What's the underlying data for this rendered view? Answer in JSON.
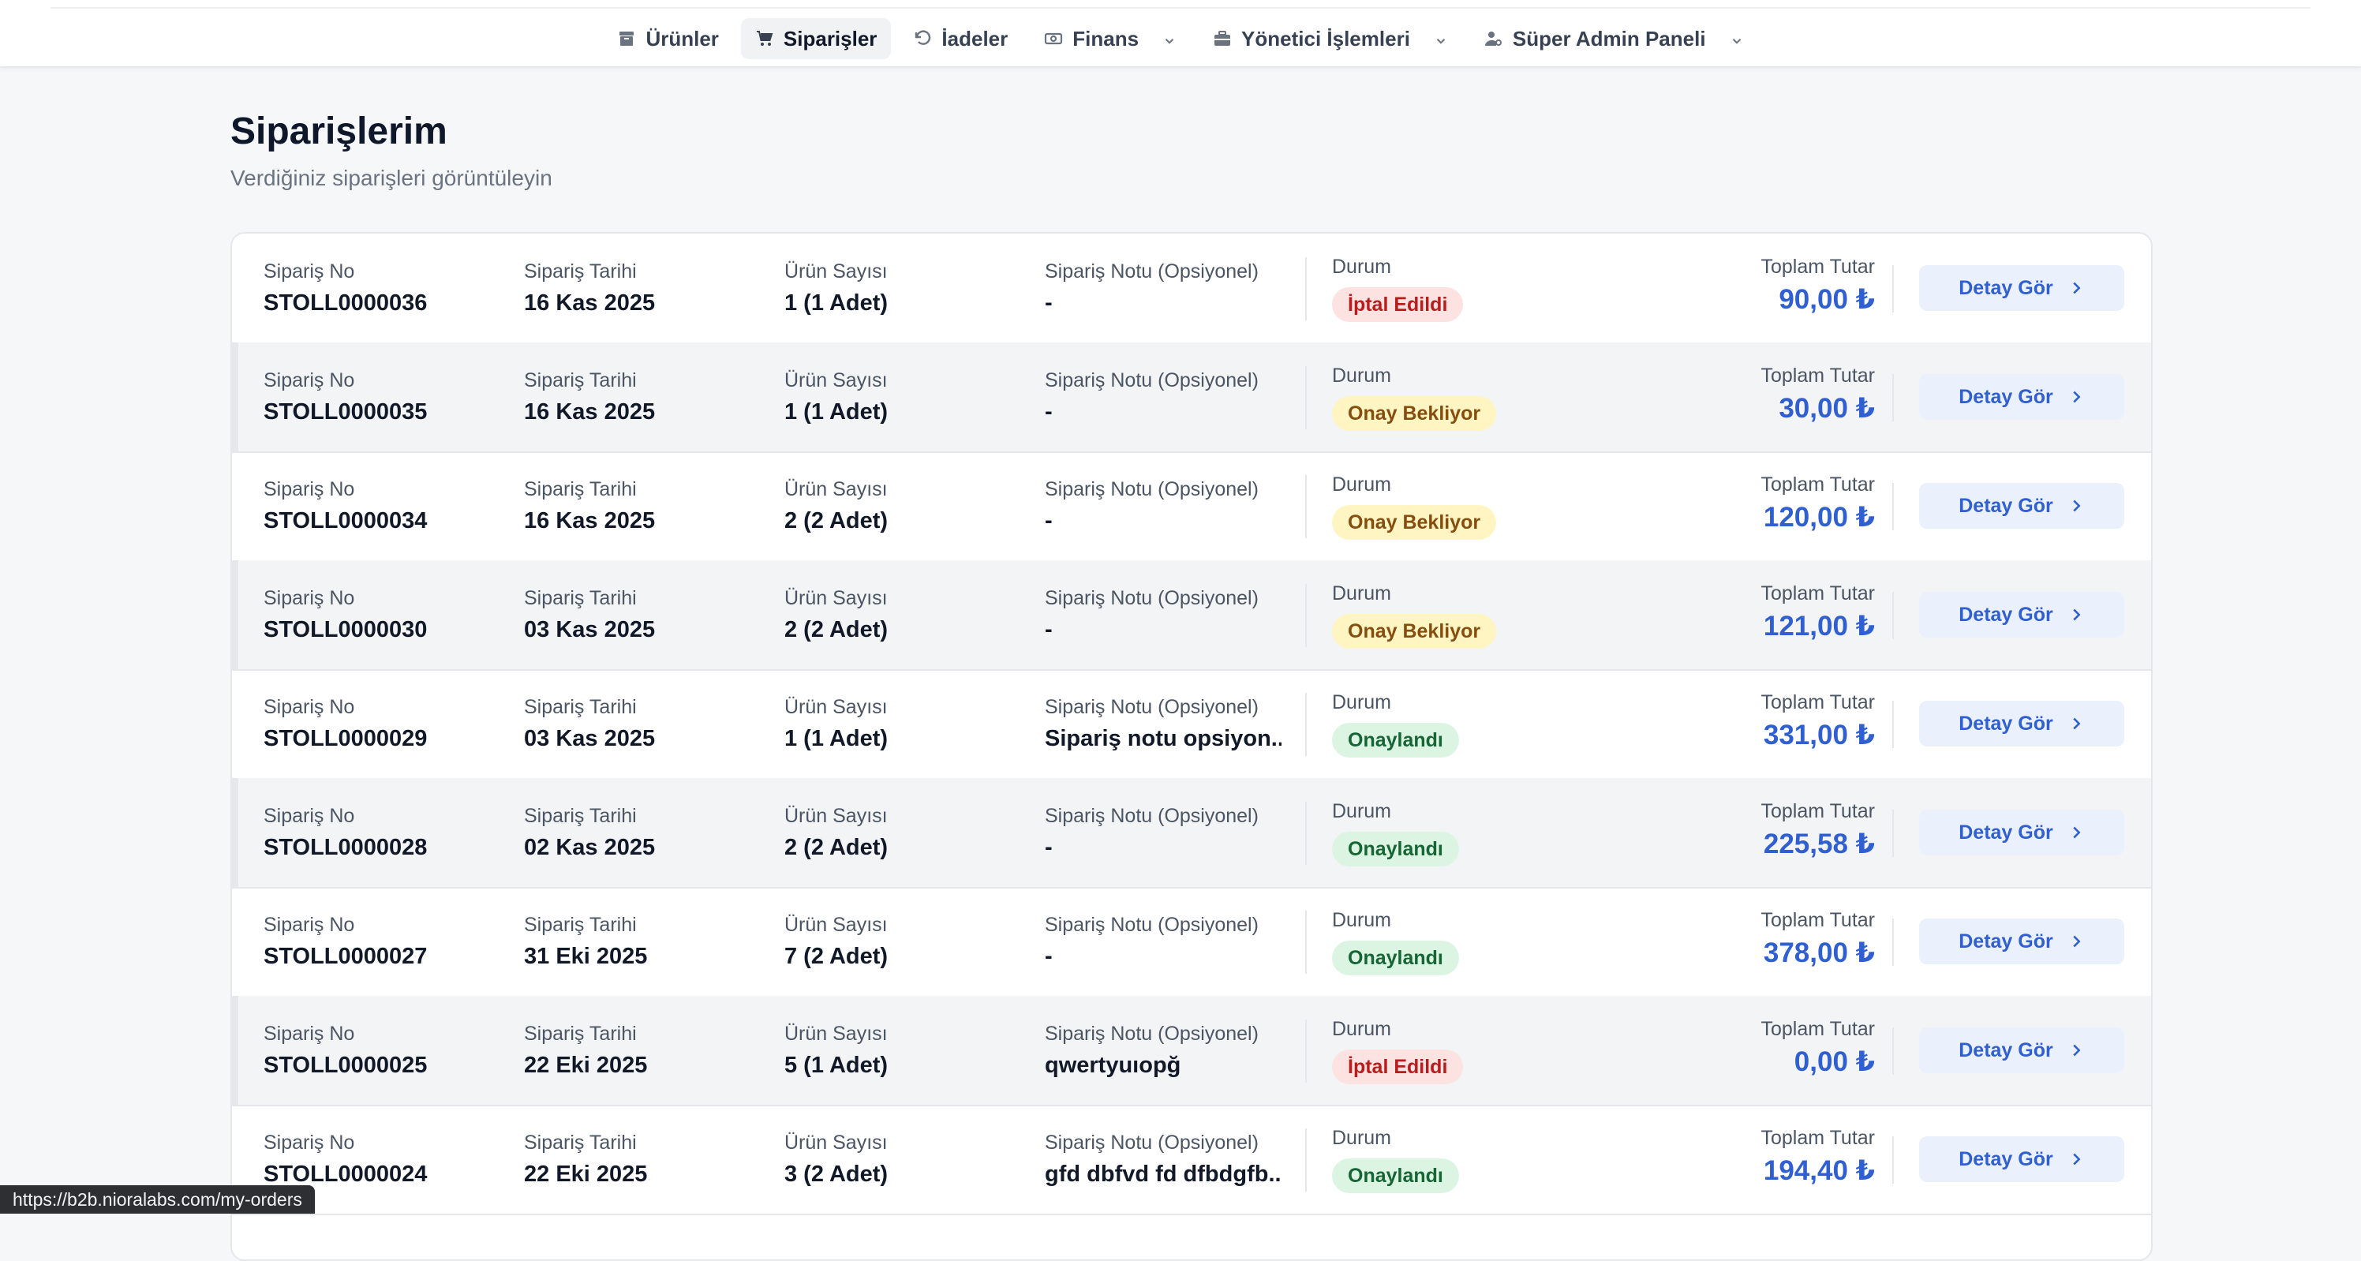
{
  "nav": {
    "items": [
      {
        "label": "Ürünler",
        "icon": "box-icon",
        "active": false,
        "dropdown": false
      },
      {
        "label": "Siparişler",
        "icon": "cart-icon",
        "active": true,
        "dropdown": false
      },
      {
        "label": "İadeler",
        "icon": "undo-icon",
        "active": false,
        "dropdown": false
      },
      {
        "label": "Finans",
        "icon": "money-icon",
        "active": false,
        "dropdown": true
      },
      {
        "label": "Yönetici İşlemleri",
        "icon": "briefcase-icon",
        "active": false,
        "dropdown": true
      },
      {
        "label": "Süper Admin Paneli",
        "icon": "user-cog-icon",
        "active": false,
        "dropdown": true
      }
    ]
  },
  "page": {
    "title": "Siparişlerim",
    "subtitle": "Verdiğiniz siparişleri görüntüleyin"
  },
  "labels": {
    "order_no": "Sipariş No",
    "order_date": "Sipariş Tarihi",
    "item_count": "Ürün Sayısı",
    "note": "Sipariş Notu (Opsiyonel)",
    "status": "Durum",
    "total": "Toplam Tutar",
    "detail_button": "Detay Gör"
  },
  "orders": [
    {
      "no": "STOLL0000036",
      "date": "16 Kas 2025",
      "count": "1 (1 Adet)",
      "note": "-",
      "status": "İptal Edildi",
      "status_type": "cancelled",
      "total": "90,00 ₺"
    },
    {
      "no": "STOLL0000035",
      "date": "16 Kas 2025",
      "count": "1 (1 Adet)",
      "note": "-",
      "status": "Onay Bekliyor",
      "status_type": "pending",
      "total": "30,00 ₺"
    },
    {
      "no": "STOLL0000034",
      "date": "16 Kas 2025",
      "count": "2 (2 Adet)",
      "note": "-",
      "status": "Onay Bekliyor",
      "status_type": "pending",
      "total": "120,00 ₺"
    },
    {
      "no": "STOLL0000030",
      "date": "03 Kas 2025",
      "count": "2 (2 Adet)",
      "note": "-",
      "status": "Onay Bekliyor",
      "status_type": "pending",
      "total": "121,00 ₺"
    },
    {
      "no": "STOLL0000029",
      "date": "03 Kas 2025",
      "count": "1 (1 Adet)",
      "note": "Sipariş notu opsiyon...",
      "status": "Onaylandı",
      "status_type": "approved",
      "total": "331,00 ₺"
    },
    {
      "no": "STOLL0000028",
      "date": "02 Kas 2025",
      "count": "2 (2 Adet)",
      "note": "-",
      "status": "Onaylandı",
      "status_type": "approved",
      "total": "225,58 ₺"
    },
    {
      "no": "STOLL0000027",
      "date": "31 Eki 2025",
      "count": "7 (2 Adet)",
      "note": "-",
      "status": "Onaylandı",
      "status_type": "approved",
      "total": "378,00 ₺"
    },
    {
      "no": "STOLL0000025",
      "date": "22 Eki 2025",
      "count": "5 (1 Adet)",
      "note": "qwertyuıopğ",
      "status": "İptal Edildi",
      "status_type": "cancelled",
      "total": "0,00 ₺"
    },
    {
      "no": "STOLL0000024",
      "date": "22 Eki 2025",
      "count": "3 (2 Adet)",
      "note": "gfd dbfvd fd dfbdgfb...",
      "status": "Onaylandı",
      "status_type": "approved",
      "total": "194,40 ₺"
    }
  ],
  "status_url": "https://b2b.nioralabs.com/my-orders",
  "colors": {
    "accent": "#2f5fd0",
    "cancelled_bg": "#fde2e2",
    "pending_bg": "#fef5c3",
    "approved_bg": "#dcf5e3"
  }
}
